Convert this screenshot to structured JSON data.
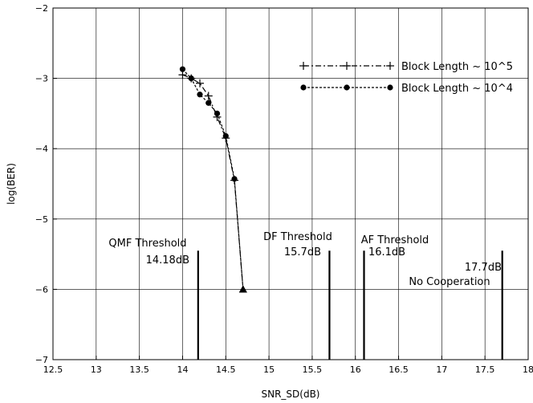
{
  "chart_data": {
    "type": "line",
    "xlabel": "SNR_SD(dB)",
    "ylabel": "log(BER)",
    "xlim": [
      12.5,
      18
    ],
    "ylim": [
      -7,
      -2
    ],
    "x_ticks": [
      12.5,
      13,
      13.5,
      14,
      14.5,
      15,
      15.5,
      16,
      16.5,
      17,
      17.5,
      18
    ],
    "x_tick_labels": [
      "12.5",
      "13",
      "13.5",
      "14",
      "14.5",
      "15",
      "15.5",
      "16",
      "16.5",
      "17",
      "17.5",
      "18"
    ],
    "y_ticks": [
      -7,
      -6,
      -5,
      -4,
      -3,
      -2
    ],
    "y_tick_labels": [
      "−7",
      "−6",
      "−5",
      "−4",
      "−3",
      "−2"
    ],
    "grid": true,
    "legend_position": "top-right",
    "series": [
      {
        "name": "Block Length ~ 10^5",
        "line_style": "dash-dot",
        "marker": "plus",
        "x": [
          14.0,
          14.1,
          14.2,
          14.3,
          14.4,
          14.5,
          14.6,
          14.7
        ],
        "y": [
          -2.95,
          -3.0,
          -3.07,
          -3.25,
          -3.55,
          -3.85,
          -4.45,
          -6.0
        ]
      },
      {
        "name": "Block Length ~ 10^4",
        "line_style": "dashed",
        "marker": "dot",
        "x": [
          14.0,
          14.1,
          14.2,
          14.3,
          14.4,
          14.5,
          14.6,
          14.7
        ],
        "y": [
          -2.87,
          -3.0,
          -3.23,
          -3.35,
          -3.5,
          -3.82,
          -4.43,
          -6.0
        ]
      }
    ],
    "thresholds": [
      {
        "x": 14.18,
        "name": "QMF Threshold",
        "value": "14.18dB"
      },
      {
        "x": 15.7,
        "name": "DF Threshold",
        "value": "15.7dB"
      },
      {
        "x": 16.1,
        "name": "AF Threshold",
        "value": "16.1dB"
      },
      {
        "x": 17.7,
        "name": "No Cooperation",
        "value": "17.7dB"
      }
    ]
  }
}
